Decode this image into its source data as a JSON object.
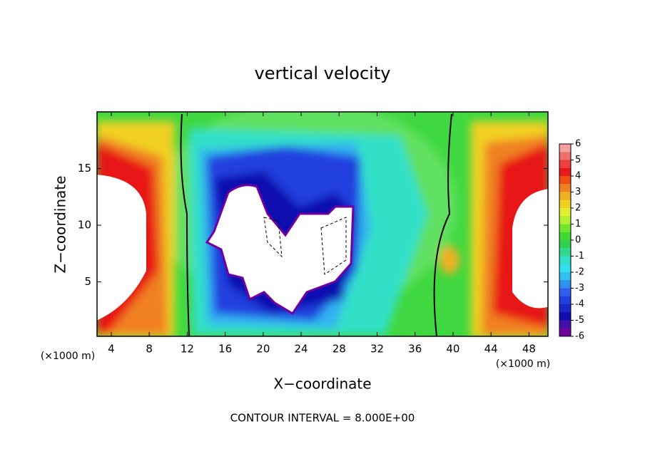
{
  "chart_data": {
    "type": "contour",
    "title": "vertical velocity",
    "x_label": "X−coordinate",
    "y_label": "Z−coordinate",
    "x_unit_labels": [
      "(×1000 m)",
      "(×1000 m)"
    ],
    "note": "CONTOUR INTERVAL = 8.000E+00",
    "xlim": [
      2.5,
      50
    ],
    "xticks": [
      4,
      8,
      12,
      16,
      20,
      24,
      28,
      32,
      36,
      40,
      44,
      48
    ],
    "ylim": [
      0.2,
      20
    ],
    "yticks": [
      5,
      10,
      15
    ],
    "colorbar": {
      "ticks": [
        6,
        5,
        4,
        3,
        2,
        1,
        0,
        -1,
        -2,
        -3,
        -4,
        -5,
        -6
      ],
      "colors": [
        "#f8a0a0",
        "#f07070",
        "#f04040",
        "#e81818",
        "#f05010",
        "#f08020",
        "#f0b020",
        "#f0d020",
        "#e0f030",
        "#b0f030",
        "#70e830",
        "#40d830",
        "#30d050",
        "#30d890",
        "#30e0c8",
        "#30e0f0",
        "#30c0f0",
        "#3090f0",
        "#3060f0",
        "#2040e0",
        "#1828c8",
        "#1010b0",
        "#4010a8",
        "#7000a0"
      ]
    }
  }
}
